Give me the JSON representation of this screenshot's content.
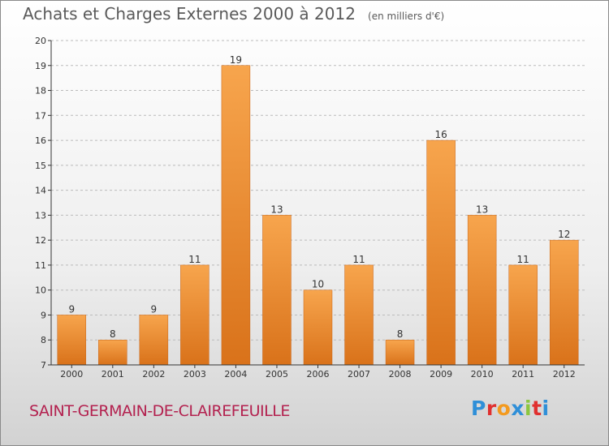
{
  "header": {
    "title": "Achats et Charges Externes 2000 à 2012",
    "unit": "(en milliers d'€)"
  },
  "footer": {
    "commune": "SAINT-GERMAIN-DE-CLAIREFEUILLE",
    "logo": {
      "letters": [
        "P",
        "r",
        "o",
        "x",
        "i",
        "t",
        "i"
      ],
      "colors": [
        "#2f8fd8",
        "#e0302f",
        "#f39a1f",
        "#2f8fd8",
        "#8cc63f",
        "#e0302f",
        "#2f8fd8"
      ]
    }
  },
  "colors": {
    "bar_light": "#f7a54d",
    "bar_dark": "#d9721a",
    "axis": "#333333",
    "grid": "#bbbbbb",
    "title": "#5a5a5a",
    "commune": "#b3214f"
  },
  "chart_data": {
    "type": "bar",
    "categories": [
      "2000",
      "2001",
      "2002",
      "2003",
      "2004",
      "2005",
      "2006",
      "2007",
      "2008",
      "2009",
      "2010",
      "2011",
      "2012"
    ],
    "values": [
      9,
      8,
      9,
      11,
      19,
      13,
      10,
      11,
      8,
      16,
      13,
      11,
      12
    ],
    "ylim": [
      7,
      20
    ],
    "yticks": [
      7,
      8,
      9,
      10,
      11,
      12,
      13,
      14,
      15,
      16,
      17,
      18,
      19,
      20
    ],
    "grid": "horizontal dashed",
    "data_labels": true
  }
}
